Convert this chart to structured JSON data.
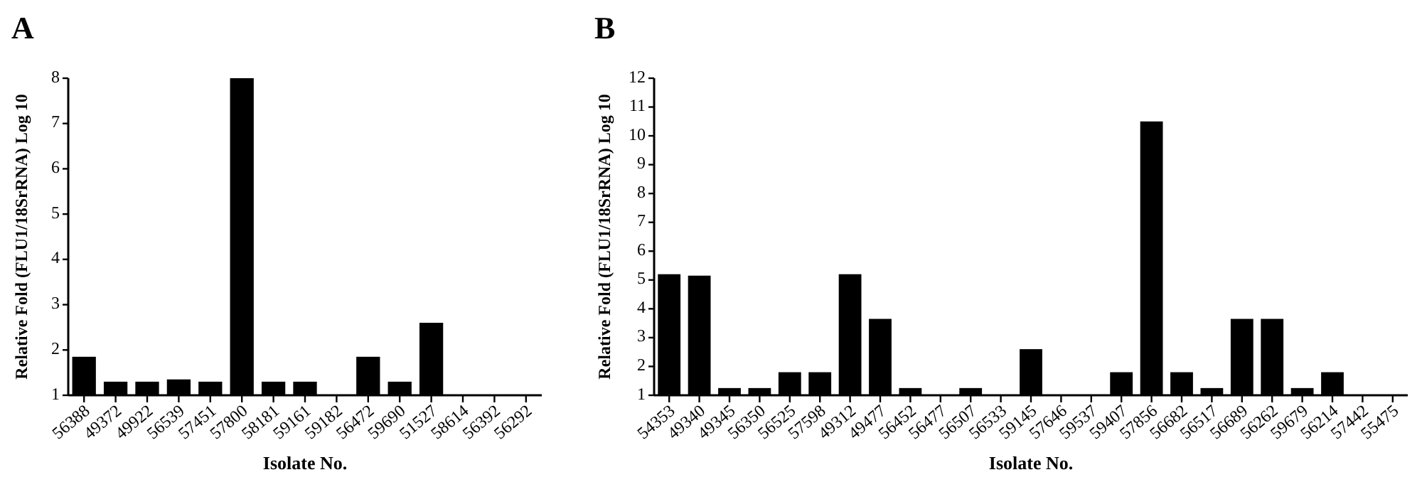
{
  "chart_data": [
    {
      "type": "bar",
      "title": "A",
      "xlabel": "Isolate No.",
      "ylabel": "Relative Fold (FLU1/18SrRNA) Log 10",
      "categories": [
        "56388",
        "49372",
        "49922",
        "56539",
        "57451",
        "57800",
        "58181",
        "59161",
        "59182",
        "56472",
        "59690",
        "51527",
        "58614",
        "56392",
        "56292"
      ],
      "values": [
        1.85,
        1.3,
        1.3,
        1.35,
        1.3,
        8,
        1.3,
        1.3,
        1,
        1.85,
        1.3,
        2.6,
        1,
        1,
        1
      ],
      "color": "#000000",
      "ylim": [
        1,
        8
      ],
      "yticks": [
        1,
        2,
        3,
        4,
        5,
        6,
        7,
        8
      ],
      "grid": false
    },
    {
      "type": "bar",
      "title": "B",
      "xlabel": "Isolate No.",
      "ylabel": "Relative Fold (FLU1/18SrRNA) Log 10",
      "categories": [
        "54353",
        "49340",
        "49345",
        "56350",
        "56525",
        "57598",
        "49312",
        "49477",
        "56452",
        "56477",
        "56507",
        "56533",
        "59145",
        "57646",
        "59537",
        "59407",
        "57856",
        "56682",
        "56517",
        "56689",
        "56262",
        "59679",
        "56214",
        "57442",
        "55475"
      ],
      "values": [
        5.2,
        5.15,
        1.25,
        1.25,
        1.8,
        1.8,
        5.2,
        3.65,
        1.25,
        1,
        1.25,
        1,
        2.6,
        1,
        1,
        1.8,
        10.5,
        1.8,
        1.25,
        3.65,
        3.65,
        1.25,
        1.8,
        1,
        1
      ],
      "color": "#000000",
      "ylim": [
        1,
        12
      ],
      "yticks": [
        1,
        2,
        3,
        4,
        5,
        6,
        7,
        8,
        9,
        10,
        11,
        12
      ],
      "grid": false
    }
  ]
}
